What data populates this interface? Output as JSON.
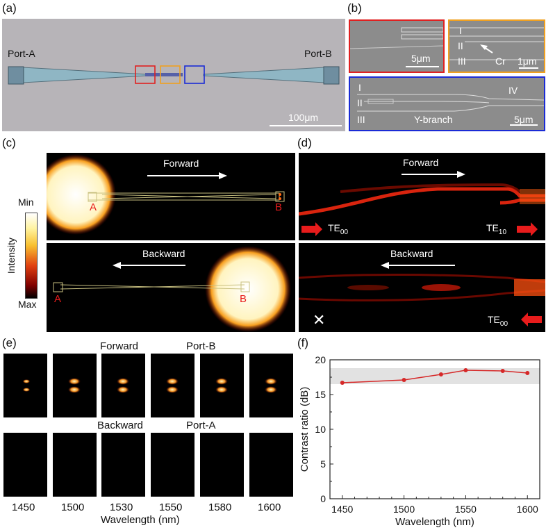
{
  "panels": {
    "a": {
      "label": "(a)",
      "port_a": "Port-A",
      "port_b": "Port-B",
      "scale": "100μm"
    },
    "b": {
      "label": "(b)",
      "red_scale": "5μm",
      "orange_roman": [
        "I",
        "II",
        "III"
      ],
      "orange_cr": "Cr",
      "orange_scale": "1μm",
      "blue_roman": [
        "I",
        "II",
        "III"
      ],
      "blue_iv": "IV",
      "blue_ybranch": "Y-branch",
      "blue_scale": "5μm"
    },
    "c": {
      "label": "(c)",
      "cbar_title": "Intensity",
      "cbar_min": "Min",
      "cbar_max": "Max",
      "top_dir": "Forward",
      "top_a": "A",
      "top_b": "B",
      "bot_dir": "Backward",
      "bot_a": "A",
      "bot_b": "B"
    },
    "d": {
      "label": "(d)",
      "top_dir": "Forward",
      "top_left": "TE00",
      "top_right": "TE10",
      "bot_dir": "Backward",
      "bot_right": "TE00",
      "bot_x": "✕"
    },
    "e": {
      "label": "(e)",
      "row1_left": "Forward",
      "row1_right": "Port-B",
      "row2_left": "Backward",
      "row2_right": "Port-A",
      "wavelengths": [
        "1450",
        "1500",
        "1530",
        "1550",
        "1580",
        "1600"
      ],
      "xlabel": "Wavelength (nm)"
    },
    "f": {
      "label": "(f)"
    }
  },
  "colors": {
    "red_box": "#e02020",
    "orange_box": "#f0a020",
    "blue_box": "#1a2bd6",
    "series": "#d62828"
  },
  "chart_data": {
    "type": "line",
    "x": [
      1450,
      1500,
      1530,
      1550,
      1580,
      1600
    ],
    "series": [
      {
        "values": [
          16.7,
          17.1,
          17.9,
          18.5,
          18.4,
          18.1
        ]
      }
    ],
    "xlabel": "Wavelength (nm)",
    "ylabel": "Contrast ratio (dB)",
    "xlim": [
      1440,
      1610
    ],
    "ylim": [
      0,
      20
    ],
    "xticks": [
      1450,
      1500,
      1550,
      1600
    ],
    "yticks": [
      0,
      5,
      10,
      15,
      20
    ],
    "band": [
      16.5,
      18.8
    ],
    "grid": false
  }
}
